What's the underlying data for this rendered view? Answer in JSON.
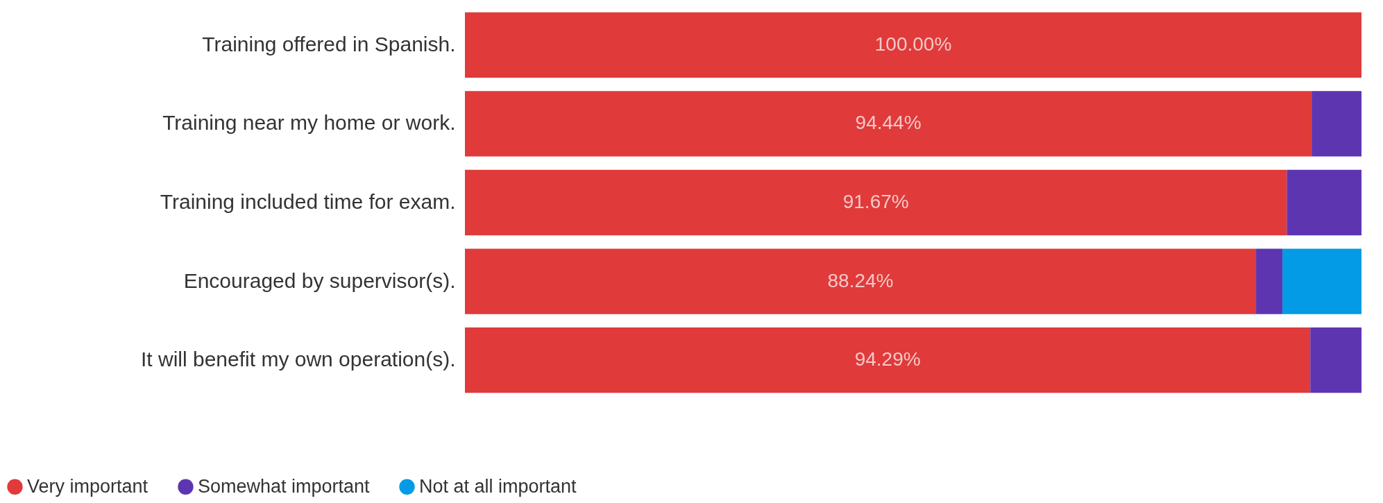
{
  "chart_data": {
    "type": "bar",
    "orientation": "horizontal",
    "stacked": true,
    "categories": [
      "Training offered in Spanish.",
      "Training near my home or work.",
      "Training included time for exam.",
      "Encouraged by supervisor(s).",
      "It will benefit my own operation(s)."
    ],
    "series": [
      {
        "name": "Very important",
        "color": "#e03a3a",
        "values": [
          100,
          94.44,
          91.67,
          88.24,
          94.29
        ],
        "value_labels": [
          "100.00%",
          "94.44%",
          "91.67%",
          "88.24%",
          "94.29%"
        ]
      },
      {
        "name": "Somewhat important",
        "color": "#5e35b1",
        "values": [
          0,
          5.56,
          8.33,
          2.94,
          5.71
        ]
      },
      {
        "name": "Not at all important",
        "color": "#039be5",
        "values": [
          0,
          0,
          0,
          8.82,
          0
        ]
      }
    ],
    "xlim": [
      0,
      100
    ],
    "tick_labels": "y",
    "legend": "bottom"
  }
}
